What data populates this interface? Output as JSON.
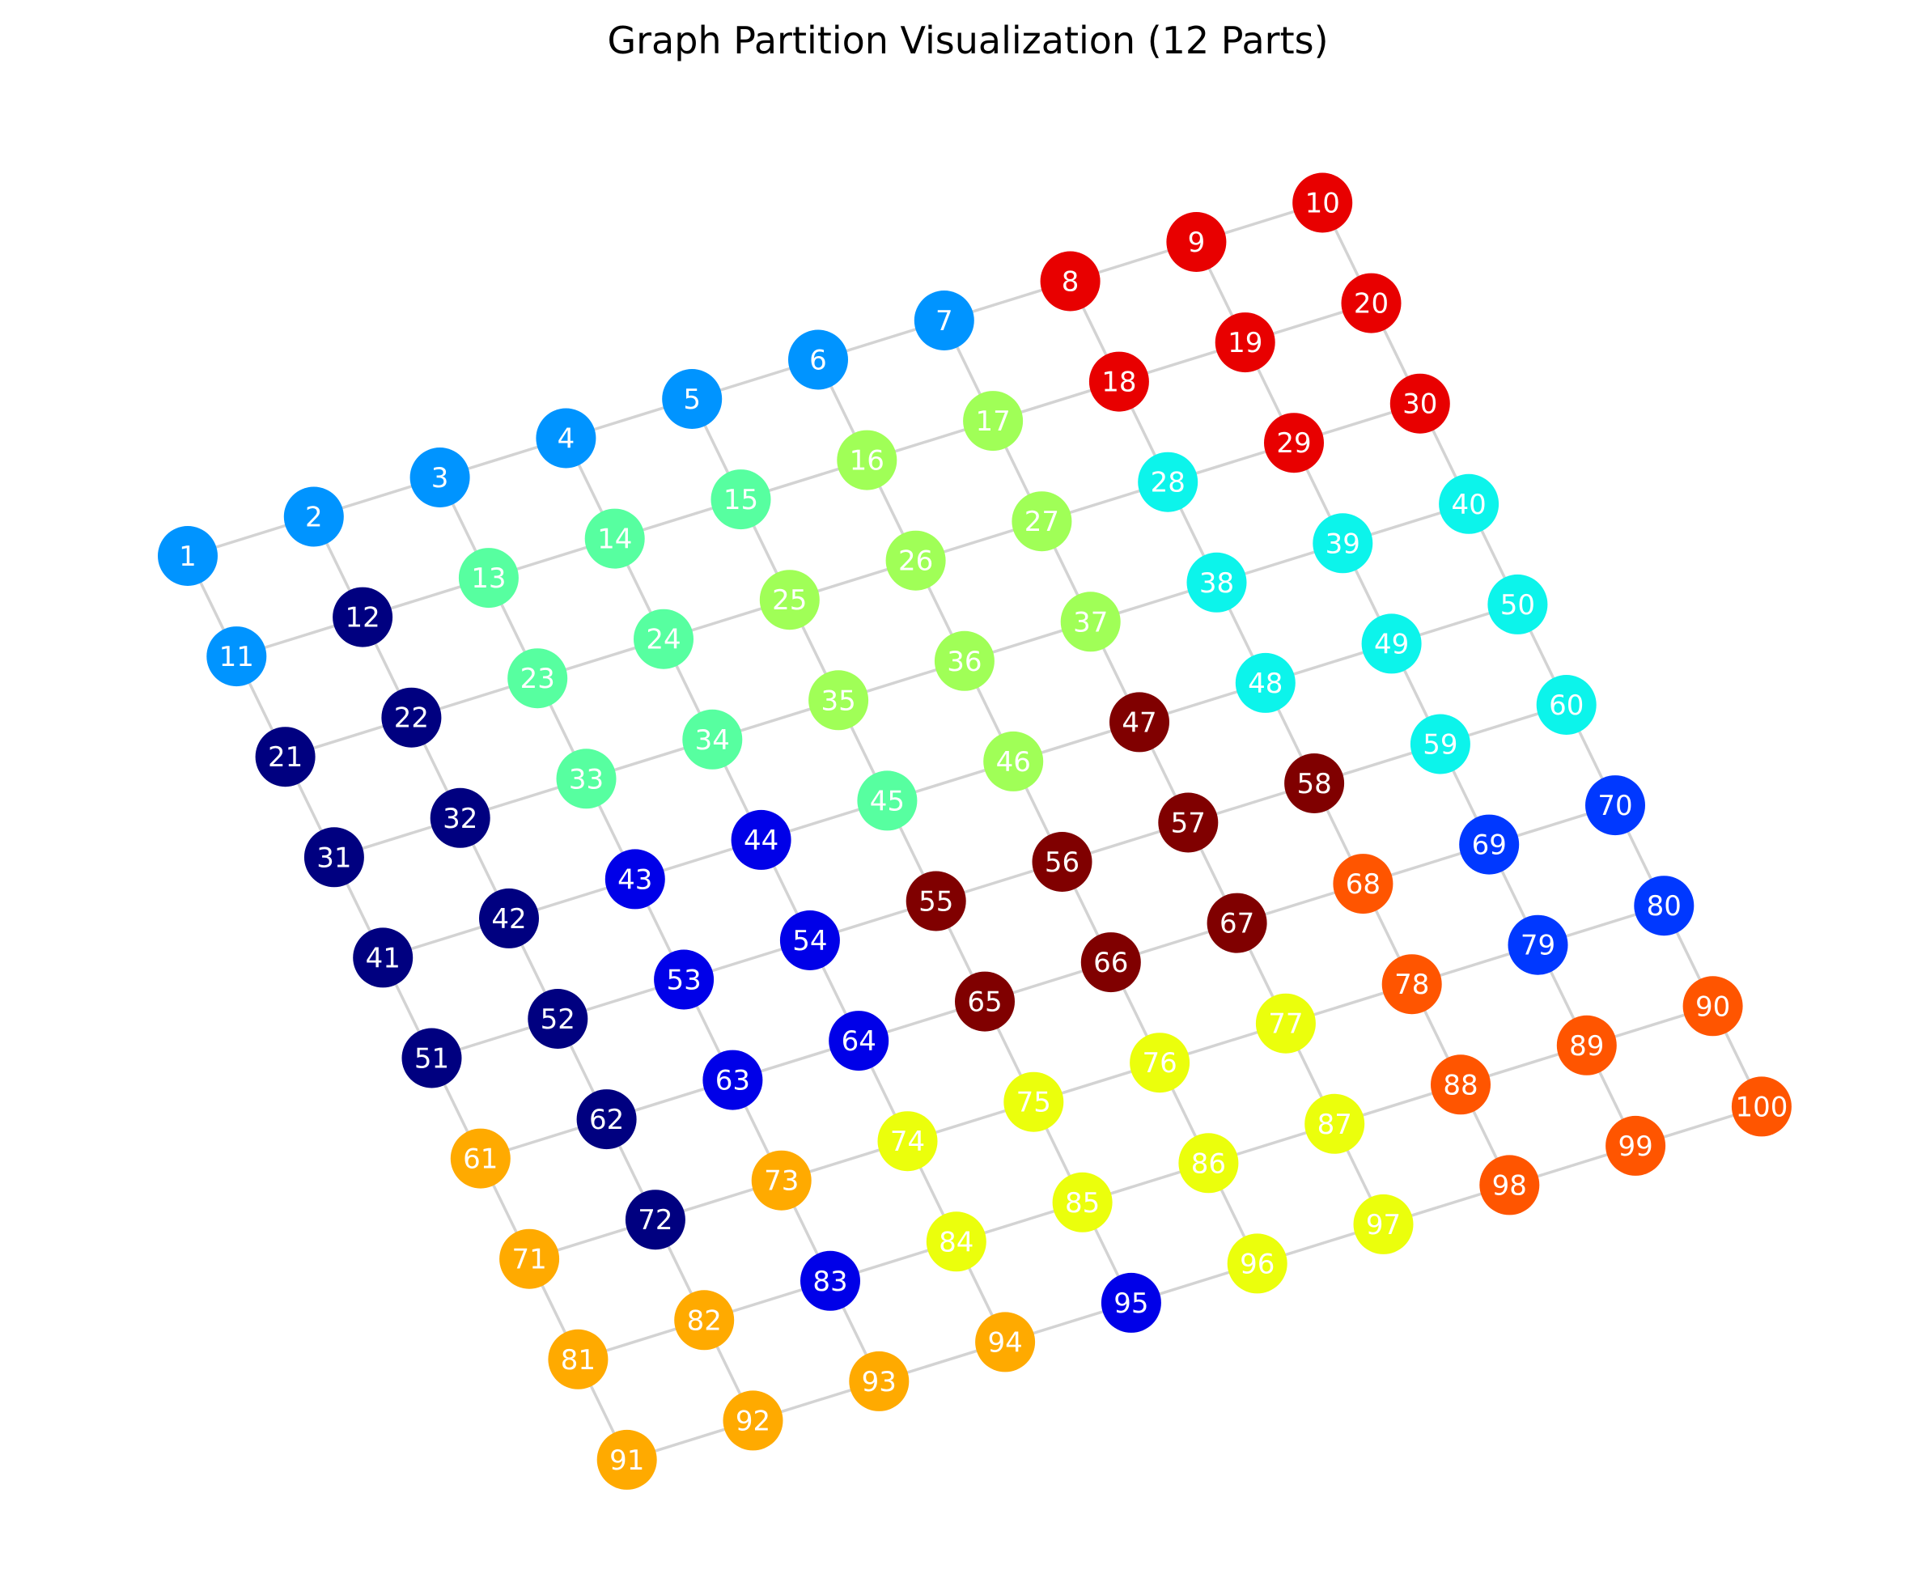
{
  "title": "Graph Partition Visualization (12 Parts)",
  "graph": {
    "type": "grid",
    "rows": 10,
    "cols": 10,
    "partition_colors": {
      "0": "#000080",
      "1": "#0000e8",
      "2": "#0038ff",
      "3": "#0094ff",
      "4": "#0cf4eb",
      "5": "#57ffa0",
      "6": "#a0ff57",
      "7": "#ebff0c",
      "8": "#ffaa00",
      "9": "#ff5500",
      "10": "#e80000",
      "11": "#800000"
    },
    "node_partitions": [
      3,
      3,
      3,
      3,
      3,
      3,
      3,
      10,
      10,
      10,
      3,
      0,
      5,
      5,
      5,
      6,
      6,
      10,
      10,
      10,
      0,
      0,
      5,
      5,
      6,
      6,
      6,
      4,
      10,
      10,
      0,
      0,
      5,
      5,
      6,
      6,
      6,
      4,
      4,
      4,
      0,
      0,
      1,
      1,
      5,
      6,
      11,
      4,
      4,
      4,
      0,
      0,
      1,
      1,
      11,
      11,
      11,
      11,
      4,
      4,
      8,
      0,
      1,
      1,
      11,
      11,
      11,
      9,
      2,
      2,
      8,
      0,
      8,
      7,
      7,
      7,
      7,
      9,
      2,
      2,
      8,
      8,
      1,
      7,
      7,
      7,
      7,
      9,
      9,
      9,
      8,
      8,
      8,
      8,
      1,
      7,
      7,
      9,
      9,
      9
    ]
  }
}
